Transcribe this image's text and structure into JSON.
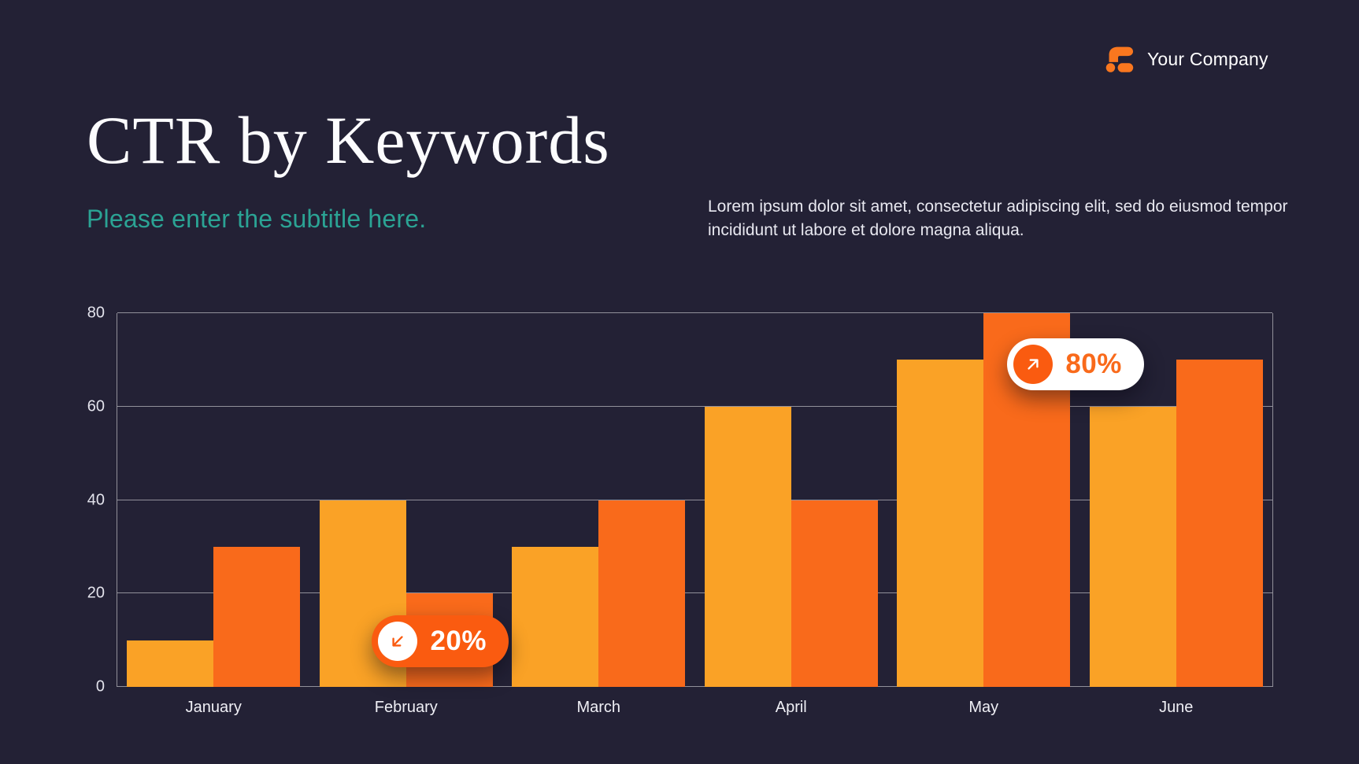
{
  "slide": {
    "brand": {
      "name": "Your Company",
      "logo_color": "#F9771F"
    },
    "title": "CTR by Keywords",
    "subtitle": "Please enter the subtitle here.",
    "subtitle_color": "#2BA394",
    "description": "Lorem ipsum dolor sit amet, consectetur adipiscing elit, sed do eiusmod tempor incididunt ut labore et dolore magna aliqua."
  },
  "colors": {
    "background": "#232135",
    "accent_orange": "#FA5B10",
    "bar_light": "#FAA226",
    "bar_dark": "#F96A1B",
    "logo_orange": "#F9771F",
    "teal": "#2BA394"
  },
  "chart_data": {
    "type": "bar",
    "title": "",
    "xlabel": "",
    "ylabel": "",
    "categories": [
      "January",
      "February",
      "March",
      "April",
      "May",
      "June"
    ],
    "series": [
      {
        "name": "series-1",
        "color": "#FAA226",
        "values": [
          10,
          40,
          30,
          60,
          70,
          60
        ]
      },
      {
        "name": "series-2",
        "color": "#F96A1B",
        "values": [
          30,
          20,
          40,
          40,
          80,
          70
        ]
      }
    ],
    "ylim": [
      0,
      80
    ],
    "yticks": [
      0,
      20,
      40,
      60,
      80
    ],
    "grid": true,
    "legend": false,
    "annotations": [
      {
        "label": "20%",
        "trend": "down",
        "attached_to": "February",
        "style": "orange-pill"
      },
      {
        "label": "80%",
        "trend": "up",
        "attached_to": "May",
        "style": "white-pill"
      }
    ]
  }
}
